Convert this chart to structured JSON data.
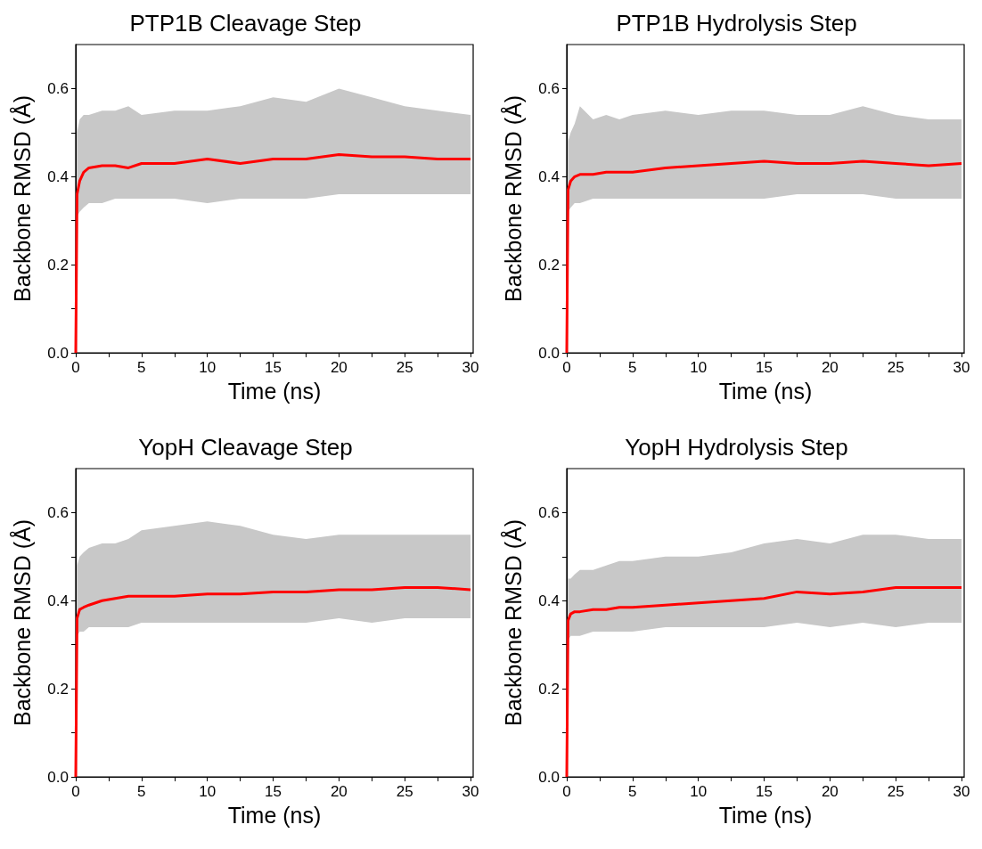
{
  "chart_data": [
    {
      "type": "line",
      "title": "PTP1B Cleavage Step",
      "xlabel": "Time (ns)",
      "ylabel": "Backbone RMSD (Å)",
      "xlim": [
        0,
        30.2
      ],
      "ylim": [
        0,
        0.7
      ],
      "xticks": [
        0,
        {
          "value": 2.5,
          "label": null
        },
        5,
        {
          "value": 7.5,
          "label": null
        },
        10,
        {
          "value": 12.5,
          "label": null
        },
        15,
        {
          "value": 17.5,
          "label": null
        },
        20,
        {
          "value": 22.5,
          "label": null
        },
        25,
        {
          "value": 27.5,
          "label": null
        },
        30
      ],
      "yticks": [
        {
          "value": 0,
          "label": "0.0"
        },
        {
          "value": 0.1,
          "label": null
        },
        0.2,
        {
          "value": 0.3,
          "label": null
        },
        0.4,
        {
          "value": 0.5,
          "label": null
        },
        0.6
      ],
      "x": [
        0,
        0.1,
        0.3,
        0.6,
        1,
        2,
        3,
        4,
        5,
        7.5,
        10,
        12.5,
        15,
        17.5,
        20,
        22.5,
        25,
        27.5,
        30
      ],
      "series": [
        {
          "color": "#ff0000",
          "values": [
            0,
            0.36,
            0.39,
            0.41,
            0.42,
            0.425,
            0.425,
            0.42,
            0.43,
            0.43,
            0.44,
            0.43,
            0.44,
            0.44,
            0.45,
            0.445,
            0.445,
            0.44,
            0.44
          ],
          "lower": [
            null,
            0.31,
            0.32,
            0.33,
            0.34,
            0.34,
            0.35,
            0.35,
            0.35,
            0.35,
            0.34,
            0.35,
            0.35,
            0.35,
            0.36,
            0.36,
            0.36,
            0.36,
            0.36
          ],
          "upper": [
            null,
            0.5,
            0.53,
            0.54,
            0.54,
            0.55,
            0.55,
            0.56,
            0.54,
            0.55,
            0.55,
            0.56,
            0.58,
            0.57,
            0.6,
            0.58,
            0.56,
            0.55,
            0.54
          ]
        }
      ],
      "marker": "none",
      "grid": false
    },
    {
      "type": "line",
      "title": "PTP1B Hydrolysis Step",
      "xlabel": "Time (ns)",
      "ylabel": "Backbone RMSD (Å)",
      "xlim": [
        0,
        30.2
      ],
      "ylim": [
        0,
        0.7
      ],
      "xticks": [
        0,
        {
          "value": 2.5,
          "label": null
        },
        5,
        {
          "value": 7.5,
          "label": null
        },
        10,
        {
          "value": 12.5,
          "label": null
        },
        15,
        {
          "value": 17.5,
          "label": null
        },
        20,
        {
          "value": 22.5,
          "label": null
        },
        25,
        {
          "value": 27.5,
          "label": null
        },
        30
      ],
      "yticks": [
        {
          "value": 0,
          "label": "0.0"
        },
        {
          "value": 0.1,
          "label": null
        },
        0.2,
        {
          "value": 0.3,
          "label": null
        },
        0.4,
        {
          "value": 0.5,
          "label": null
        },
        0.6
      ],
      "x": [
        0,
        0.1,
        0.3,
        0.6,
        1,
        2,
        3,
        4,
        5,
        7.5,
        10,
        12.5,
        15,
        17.5,
        20,
        22.5,
        25,
        27.5,
        30
      ],
      "series": [
        {
          "color": "#ff0000",
          "values": [
            0,
            0.37,
            0.39,
            0.4,
            0.405,
            0.405,
            0.41,
            0.41,
            0.41,
            0.42,
            0.425,
            0.43,
            0.435,
            0.43,
            0.43,
            0.435,
            0.43,
            0.425,
            0.43
          ],
          "lower": [
            null,
            0.32,
            0.33,
            0.34,
            0.34,
            0.35,
            0.35,
            0.35,
            0.35,
            0.35,
            0.35,
            0.35,
            0.35,
            0.36,
            0.36,
            0.36,
            0.35,
            0.35,
            0.35
          ],
          "upper": [
            null,
            0.48,
            0.5,
            0.52,
            0.56,
            0.53,
            0.54,
            0.53,
            0.54,
            0.55,
            0.54,
            0.55,
            0.55,
            0.54,
            0.54,
            0.56,
            0.54,
            0.53,
            0.53
          ]
        }
      ],
      "marker": "none",
      "grid": false
    },
    {
      "type": "line",
      "title": "YopH Cleavage Step",
      "xlabel": "Time (ns)",
      "ylabel": "Backbone RMSD (Å)",
      "xlim": [
        0,
        30.2
      ],
      "ylim": [
        0,
        0.7
      ],
      "xticks": [
        0,
        {
          "value": 2.5,
          "label": null
        },
        5,
        {
          "value": 7.5,
          "label": null
        },
        10,
        {
          "value": 12.5,
          "label": null
        },
        15,
        {
          "value": 17.5,
          "label": null
        },
        20,
        {
          "value": 22.5,
          "label": null
        },
        25,
        {
          "value": 27.5,
          "label": null
        },
        30
      ],
      "yticks": [
        {
          "value": 0,
          "label": "0.0"
        },
        {
          "value": 0.1,
          "label": null
        },
        0.2,
        {
          "value": 0.3,
          "label": null
        },
        0.4,
        {
          "value": 0.5,
          "label": null
        },
        0.6
      ],
      "x": [
        0,
        0.1,
        0.3,
        0.6,
        1,
        2,
        3,
        4,
        5,
        7.5,
        10,
        12.5,
        15,
        17.5,
        20,
        22.5,
        25,
        27.5,
        30
      ],
      "series": [
        {
          "color": "#ff0000",
          "values": [
            0,
            0.36,
            0.38,
            0.385,
            0.39,
            0.4,
            0.405,
            0.41,
            0.41,
            0.41,
            0.415,
            0.415,
            0.42,
            0.42,
            0.425,
            0.425,
            0.43,
            0.43,
            0.425
          ],
          "lower": [
            null,
            0.32,
            0.33,
            0.33,
            0.34,
            0.34,
            0.34,
            0.34,
            0.35,
            0.35,
            0.35,
            0.35,
            0.35,
            0.35,
            0.36,
            0.35,
            0.36,
            0.36,
            0.36
          ],
          "upper": [
            null,
            0.48,
            0.5,
            0.51,
            0.52,
            0.53,
            0.53,
            0.54,
            0.56,
            0.57,
            0.58,
            0.57,
            0.55,
            0.54,
            0.55,
            0.55,
            0.55,
            0.55,
            0.55
          ]
        }
      ],
      "marker": "none",
      "grid": false
    },
    {
      "type": "line",
      "title": "YopH Hydrolysis Step",
      "xlabel": "Time (ns)",
      "ylabel": "Backbone RMSD (Å)",
      "xlim": [
        0,
        30.2
      ],
      "ylim": [
        0,
        0.7
      ],
      "xticks": [
        0,
        {
          "value": 2.5,
          "label": null
        },
        5,
        {
          "value": 7.5,
          "label": null
        },
        10,
        {
          "value": 12.5,
          "label": null
        },
        15,
        {
          "value": 17.5,
          "label": null
        },
        20,
        {
          "value": 22.5,
          "label": null
        },
        25,
        {
          "value": 27.5,
          "label": null
        },
        30
      ],
      "yticks": [
        {
          "value": 0,
          "label": "0.0"
        },
        {
          "value": 0.1,
          "label": null
        },
        0.2,
        {
          "value": 0.3,
          "label": null
        },
        0.4,
        {
          "value": 0.5,
          "label": null
        },
        0.6
      ],
      "x": [
        0,
        0.1,
        0.3,
        0.6,
        1,
        2,
        3,
        4,
        5,
        7.5,
        10,
        12.5,
        15,
        17.5,
        20,
        22.5,
        25,
        27.5,
        30
      ],
      "series": [
        {
          "color": "#ff0000",
          "values": [
            0,
            0.355,
            0.37,
            0.375,
            0.375,
            0.38,
            0.38,
            0.385,
            0.385,
            0.39,
            0.395,
            0.4,
            0.405,
            0.42,
            0.415,
            0.42,
            0.43,
            0.43,
            0.43
          ],
          "lower": [
            null,
            0.31,
            0.32,
            0.32,
            0.32,
            0.33,
            0.33,
            0.33,
            0.33,
            0.34,
            0.34,
            0.34,
            0.34,
            0.35,
            0.34,
            0.35,
            0.34,
            0.35,
            0.35
          ],
          "upper": [
            null,
            0.45,
            0.45,
            0.46,
            0.47,
            0.47,
            0.48,
            0.49,
            0.49,
            0.5,
            0.5,
            0.51,
            0.53,
            0.54,
            0.53,
            0.55,
            0.55,
            0.54,
            0.54
          ]
        }
      ],
      "marker": "none",
      "grid": false
    }
  ]
}
